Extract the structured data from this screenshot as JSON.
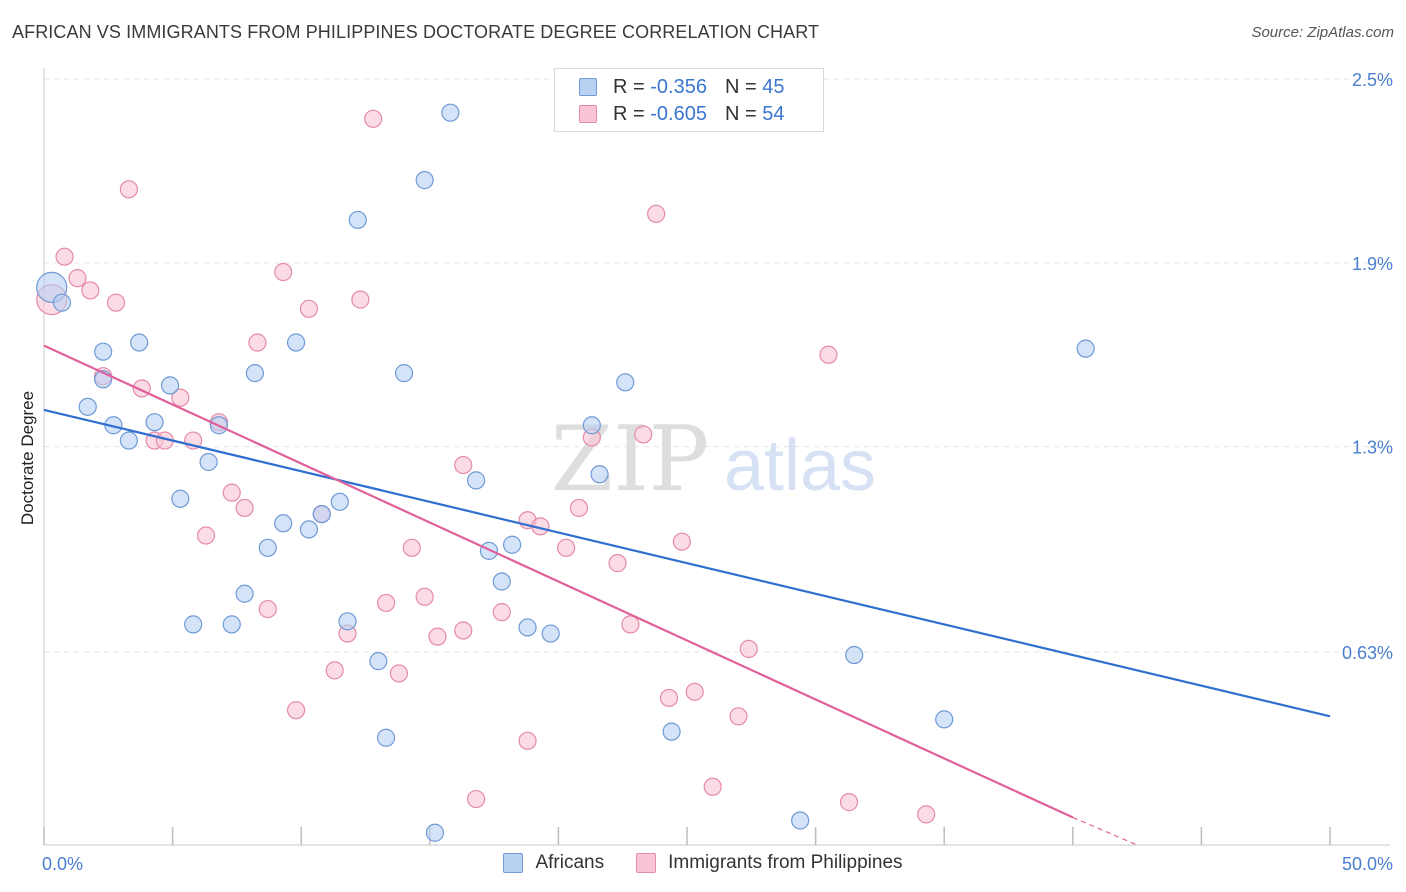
{
  "title": "AFRICAN VS IMMIGRANTS FROM PHILIPPINES DOCTORATE DEGREE CORRELATION CHART",
  "source": "Source: ZipAtlas.com",
  "watermark": {
    "zip": "ZIP",
    "atlas": "atlas"
  },
  "legend": {
    "r_label": "R =",
    "n_label": "N =",
    "africans": {
      "r": "-0.356",
      "n": "45"
    },
    "philippines": {
      "r": "-0.605",
      "n": "54"
    }
  },
  "colors": {
    "africans_fill": "#b8d0f2",
    "africans_stroke": "#6f9ad6",
    "africans_line": "#2f6fd0",
    "philippines_fill": "#f9c5d4",
    "philippines_stroke": "#e58aa7",
    "philippines_line": "#e0609a",
    "tick_text": "#4a7fd0",
    "grid": "#e3e3e3"
  },
  "chart_data": {
    "type": "scatter",
    "title": "AFRICAN VS IMMIGRANTS FROM PHILIPPINES DOCTORATE DEGREE CORRELATION CHART",
    "xlabel": "",
    "ylabel": "Doctorate Degree",
    "xlim": [
      0,
      50
    ],
    "ylim": [
      0,
      2.5
    ],
    "x_tick_labels": [
      "0.0%",
      "50.0%"
    ],
    "y_ticks": [
      0.63,
      1.3,
      1.9,
      2.5
    ],
    "y_tick_labels": [
      "0.63%",
      "1.3%",
      "1.9%",
      "2.5%"
    ],
    "grid": true,
    "legend_position": "top-center",
    "series": [
      {
        "name": "Africans",
        "r": -0.356,
        "n": 45,
        "trend": {
          "x": [
            0,
            50
          ],
          "y": [
            1.42,
            0.42
          ]
        },
        "points": [
          {
            "x": 0.3,
            "y": 1.82,
            "big": true
          },
          {
            "x": 0.7,
            "y": 1.77
          },
          {
            "x": 2.3,
            "y": 1.61
          },
          {
            "x": 1.7,
            "y": 1.43
          },
          {
            "x": 2.3,
            "y": 1.52
          },
          {
            "x": 2.7,
            "y": 1.37
          },
          {
            "x": 3.3,
            "y": 1.32
          },
          {
            "x": 3.7,
            "y": 1.64
          },
          {
            "x": 4.3,
            "y": 1.38
          },
          {
            "x": 4.9,
            "y": 1.5
          },
          {
            "x": 5.3,
            "y": 1.13
          },
          {
            "x": 5.8,
            "y": 0.72
          },
          {
            "x": 6.4,
            "y": 1.25
          },
          {
            "x": 6.8,
            "y": 1.37
          },
          {
            "x": 7.3,
            "y": 0.72
          },
          {
            "x": 7.8,
            "y": 0.82
          },
          {
            "x": 8.2,
            "y": 1.54
          },
          {
            "x": 8.7,
            "y": 0.97
          },
          {
            "x": 9.3,
            "y": 1.05
          },
          {
            "x": 9.8,
            "y": 1.64
          },
          {
            "x": 10.3,
            "y": 1.03
          },
          {
            "x": 10.8,
            "y": 1.08
          },
          {
            "x": 11.5,
            "y": 1.12
          },
          {
            "x": 11.8,
            "y": 0.73
          },
          {
            "x": 12.2,
            "y": 2.04
          },
          {
            "x": 13.0,
            "y": 0.6
          },
          {
            "x": 13.3,
            "y": 0.35
          },
          {
            "x": 14.0,
            "y": 1.54
          },
          {
            "x": 14.8,
            "y": 2.17
          },
          {
            "x": 15.2,
            "y": 0.04
          },
          {
            "x": 15.8,
            "y": 2.39
          },
          {
            "x": 16.8,
            "y": 1.19
          },
          {
            "x": 17.3,
            "y": 0.96
          },
          {
            "x": 17.8,
            "y": 0.86
          },
          {
            "x": 18.2,
            "y": 0.98
          },
          {
            "x": 18.8,
            "y": 0.71
          },
          {
            "x": 19.7,
            "y": 0.69
          },
          {
            "x": 21.3,
            "y": 1.37
          },
          {
            "x": 21.6,
            "y": 1.21
          },
          {
            "x": 22.6,
            "y": 1.51
          },
          {
            "x": 24.4,
            "y": 0.37
          },
          {
            "x": 29.4,
            "y": 0.08
          },
          {
            "x": 31.5,
            "y": 0.62
          },
          {
            "x": 35.0,
            "y": 0.41
          },
          {
            "x": 40.5,
            "y": 1.62
          }
        ]
      },
      {
        "name": "Immigrants from Philippines",
        "r": -0.605,
        "n": 54,
        "trend": {
          "x": [
            0,
            40
          ],
          "y": [
            1.63,
            0.09
          ]
        },
        "trend_dashed": {
          "x": [
            40,
            42.5
          ],
          "y": [
            0.09,
            0.0
          ]
        },
        "points": [
          {
            "x": 0.3,
            "y": 1.78,
            "big": true
          },
          {
            "x": 0.8,
            "y": 1.92
          },
          {
            "x": 1.3,
            "y": 1.85
          },
          {
            "x": 1.8,
            "y": 1.81
          },
          {
            "x": 2.3,
            "y": 1.53
          },
          {
            "x": 2.8,
            "y": 1.77
          },
          {
            "x": 3.3,
            "y": 2.14
          },
          {
            "x": 3.8,
            "y": 1.49
          },
          {
            "x": 4.3,
            "y": 1.32
          },
          {
            "x": 4.7,
            "y": 1.32
          },
          {
            "x": 5.3,
            "y": 1.46
          },
          {
            "x": 5.8,
            "y": 1.32
          },
          {
            "x": 6.3,
            "y": 1.01
          },
          {
            "x": 6.8,
            "y": 1.38
          },
          {
            "x": 7.3,
            "y": 1.15
          },
          {
            "x": 7.8,
            "y": 1.1
          },
          {
            "x": 8.3,
            "y": 1.64
          },
          {
            "x": 8.7,
            "y": 0.77
          },
          {
            "x": 9.3,
            "y": 1.87
          },
          {
            "x": 9.8,
            "y": 0.44
          },
          {
            "x": 10.3,
            "y": 1.75
          },
          {
            "x": 10.8,
            "y": 1.08
          },
          {
            "x": 11.3,
            "y": 0.57
          },
          {
            "x": 11.8,
            "y": 0.69
          },
          {
            "x": 12.3,
            "y": 1.78
          },
          {
            "x": 12.8,
            "y": 2.37
          },
          {
            "x": 13.3,
            "y": 0.79
          },
          {
            "x": 13.8,
            "y": 0.56
          },
          {
            "x": 14.3,
            "y": 0.97
          },
          {
            "x": 14.8,
            "y": 0.81
          },
          {
            "x": 15.3,
            "y": 0.68
          },
          {
            "x": 16.3,
            "y": 1.24
          },
          {
            "x": 16.3,
            "y": 0.7
          },
          {
            "x": 16.8,
            "y": 0.15
          },
          {
            "x": 17.8,
            "y": 0.76
          },
          {
            "x": 18.8,
            "y": 0.34
          },
          {
            "x": 18.8,
            "y": 1.06
          },
          {
            "x": 19.3,
            "y": 1.04
          },
          {
            "x": 20.3,
            "y": 0.97
          },
          {
            "x": 20.8,
            "y": 1.1
          },
          {
            "x": 21.3,
            "y": 1.33
          },
          {
            "x": 22.3,
            "y": 0.92
          },
          {
            "x": 22.8,
            "y": 0.72
          },
          {
            "x": 23.3,
            "y": 1.34
          },
          {
            "x": 23.8,
            "y": 2.06
          },
          {
            "x": 24.3,
            "y": 0.48
          },
          {
            "x": 24.8,
            "y": 0.99
          },
          {
            "x": 25.3,
            "y": 0.5
          },
          {
            "x": 26.0,
            "y": 0.19
          },
          {
            "x": 27.0,
            "y": 0.42
          },
          {
            "x": 27.4,
            "y": 0.64
          },
          {
            "x": 30.5,
            "y": 1.6
          },
          {
            "x": 31.3,
            "y": 0.14
          },
          {
            "x": 34.3,
            "y": 0.1
          }
        ]
      }
    ]
  }
}
